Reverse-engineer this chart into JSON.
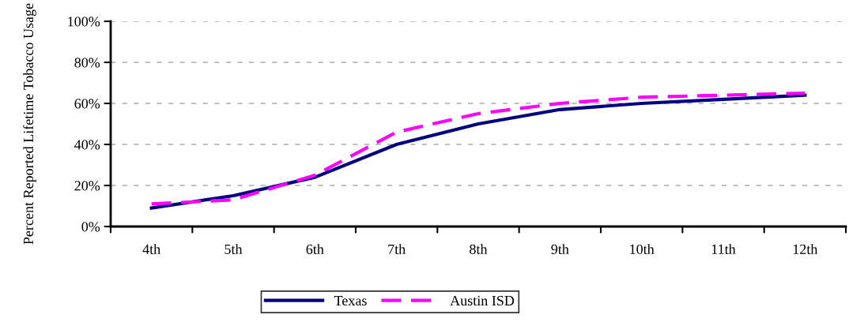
{
  "chart_data": {
    "type": "line",
    "ylabel": "Percent Reported Lifetime Tobacco Usage",
    "categories": [
      "4th",
      "5th",
      "6th",
      "7th",
      "8th",
      "9th",
      "10th",
      "11th",
      "12th"
    ],
    "series": [
      {
        "name": "Texas",
        "color": "#000080",
        "line_style": "solid",
        "values": [
          9,
          15,
          24,
          40,
          50,
          57,
          60,
          62,
          64
        ]
      },
      {
        "name": "Austin ISD",
        "color": "#ff00ff",
        "line_style": "dashed",
        "values": [
          11,
          13,
          25,
          46,
          55,
          60,
          63,
          64,
          65
        ]
      }
    ],
    "ylim": [
      0,
      100
    ],
    "yticks": [
      {
        "value": 0,
        "label": "0%"
      },
      {
        "value": 20,
        "label": "20%"
      },
      {
        "value": 40,
        "label": "40%"
      },
      {
        "value": 60,
        "label": "60%"
      },
      {
        "value": 80,
        "label": "80%"
      },
      {
        "value": 100,
        "label": "100%"
      }
    ],
    "grid": "y",
    "legend": "bottom",
    "marker": "none"
  }
}
